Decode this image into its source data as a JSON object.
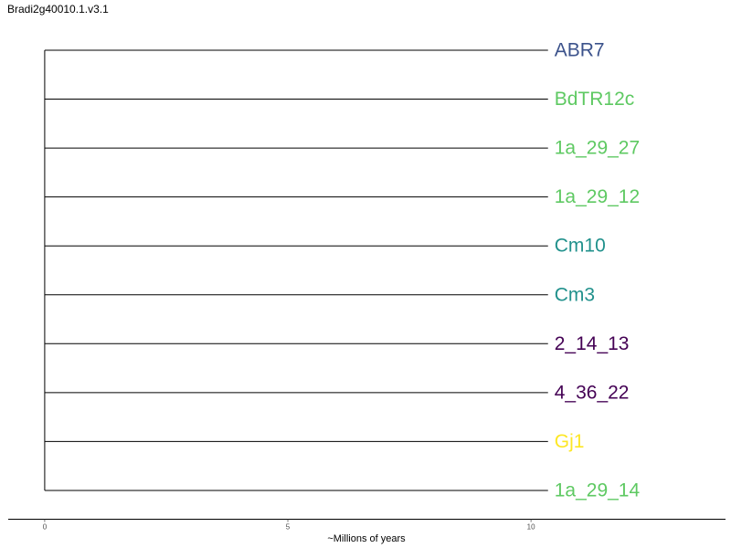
{
  "title": "Bradi2g40010.1.v3.1",
  "axis": {
    "label": "~Millions of years",
    "range": [
      -0.75,
      14
    ],
    "ticks": [
      0,
      5,
      10
    ]
  },
  "tree": {
    "root_x": 0,
    "tips": [
      {
        "label": "ABR7",
        "x": 10.35,
        "color": "#3b528b"
      },
      {
        "label": "BdTR12c",
        "x": 10.35,
        "color": "#5ec962"
      },
      {
        "label": "1a_29_27",
        "x": 10.35,
        "color": "#5ec962"
      },
      {
        "label": "1a_29_12",
        "x": 10.35,
        "color": "#5ec962"
      },
      {
        "label": "Cm10",
        "x": 10.35,
        "color": "#21918c"
      },
      {
        "label": "Cm3",
        "x": 10.35,
        "color": "#21918c"
      },
      {
        "label": "2_14_13",
        "x": 10.35,
        "color": "#440154"
      },
      {
        "label": "4_36_22",
        "x": 10.35,
        "color": "#440154"
      },
      {
        "label": "Gj1",
        "x": 10.35,
        "color": "#fde725"
      },
      {
        "label": "1a_29_14",
        "x": 10.35,
        "color": "#5ec962"
      }
    ]
  }
}
